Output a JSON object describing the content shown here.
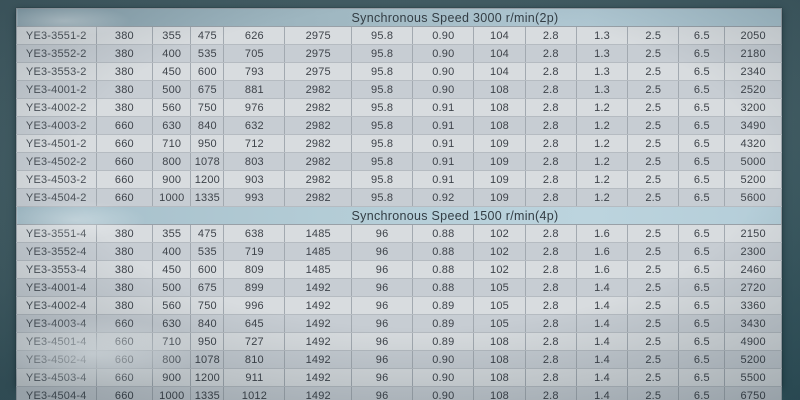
{
  "colors": {
    "background": "#3f5a61",
    "header_band_1": "#9fb7c1",
    "header_band_2": "#b3ccd6",
    "row_light": "#d8dcdf",
    "row_dark": "#c7cdd3",
    "cell_border": "#a2a9b0",
    "text": "#3e434a"
  },
  "table": {
    "sections": [
      {
        "header": "Synchronous Speed 3000 r/min(2p)",
        "rows": [
          [
            "YE3-3551-2",
            "380",
            "355",
            "475",
            "626",
            "2975",
            "95.8",
            "0.90",
            "104",
            "2.8",
            "1.3",
            "2.5",
            "6.5",
            "2050"
          ],
          [
            "YE3-3552-2",
            "380",
            "400",
            "535",
            "705",
            "2975",
            "95.8",
            "0.90",
            "104",
            "2.8",
            "1.3",
            "2.5",
            "6.5",
            "2180"
          ],
          [
            "YE3-3553-2",
            "380",
            "450",
            "600",
            "793",
            "2975",
            "95.8",
            "0.90",
            "104",
            "2.8",
            "1.3",
            "2.5",
            "6.5",
            "2340"
          ],
          [
            "YE3-4001-2",
            "380",
            "500",
            "675",
            "881",
            "2982",
            "95.8",
            "0.90",
            "108",
            "2.8",
            "1.3",
            "2.5",
            "6.5",
            "2520"
          ],
          [
            "YE3-4002-2",
            "380",
            "560",
            "750",
            "976",
            "2982",
            "95.8",
            "0.91",
            "108",
            "2.8",
            "1.2",
            "2.5",
            "6.5",
            "3200"
          ],
          [
            "YE3-4003-2",
            "660",
            "630",
            "840",
            "632",
            "2982",
            "95.8",
            "0.91",
            "108",
            "2.8",
            "1.2",
            "2.5",
            "6.5",
            "3490"
          ],
          [
            "YE3-4501-2",
            "660",
            "710",
            "950",
            "712",
            "2982",
            "95.8",
            "0.91",
            "109",
            "2.8",
            "1.2",
            "2.5",
            "6.5",
            "4320"
          ],
          [
            "YE3-4502-2",
            "660",
            "800",
            "1078",
            "803",
            "2982",
            "95.8",
            "0.91",
            "109",
            "2.8",
            "1.2",
            "2.5",
            "6.5",
            "5000"
          ],
          [
            "YE3-4503-2",
            "660",
            "900",
            "1200",
            "903",
            "2982",
            "95.8",
            "0.91",
            "109",
            "2.8",
            "1.2",
            "2.5",
            "6.5",
            "5200"
          ],
          [
            "YE3-4504-2",
            "660",
            "1000",
            "1335",
            "993",
            "2982",
            "95.8",
            "0.92",
            "109",
            "2.8",
            "1.2",
            "2.5",
            "6.5",
            "5600"
          ]
        ]
      },
      {
        "header": "Synchronous Speed 1500 r/min(4p)",
        "rows": [
          [
            "YE3-3551-4",
            "380",
            "355",
            "475",
            "638",
            "1485",
            "96",
            "0.88",
            "102",
            "2.8",
            "1.6",
            "2.5",
            "6.5",
            "2150"
          ],
          [
            "YE3-3552-4",
            "380",
            "400",
            "535",
            "719",
            "1485",
            "96",
            "0.88",
            "102",
            "2.8",
            "1.6",
            "2.5",
            "6.5",
            "2300"
          ],
          [
            "YE3-3553-4",
            "380",
            "450",
            "600",
            "809",
            "1485",
            "96",
            "0.88",
            "102",
            "2.8",
            "1.6",
            "2.5",
            "6.5",
            "2460"
          ],
          [
            "YE3-4001-4",
            "380",
            "500",
            "675",
            "899",
            "1492",
            "96",
            "0.88",
            "105",
            "2.8",
            "1.4",
            "2.5",
            "6.5",
            "2720"
          ],
          [
            "YE3-4002-4",
            "380",
            "560",
            "750",
            "996",
            "1492",
            "96",
            "0.89",
            "105",
            "2.8",
            "1.4",
            "2.5",
            "6.5",
            "3360"
          ],
          [
            "YE3-4003-4",
            "660",
            "630",
            "840",
            "645",
            "1492",
            "96",
            "0.89",
            "105",
            "2.8",
            "1.4",
            "2.5",
            "6.5",
            "3430"
          ],
          [
            "YE3-4501-4",
            "660",
            "710",
            "950",
            "727",
            "1492",
            "96",
            "0.89",
            "108",
            "2.8",
            "1.4",
            "2.5",
            "6.5",
            "4900"
          ],
          [
            "YE3-4502-4",
            "660",
            "800",
            "1078",
            "810",
            "1492",
            "96",
            "0.90",
            "108",
            "2.8",
            "1.4",
            "2.5",
            "6.5",
            "5200"
          ],
          [
            "YE3-4503-4",
            "660",
            "900",
            "1200",
            "911",
            "1492",
            "96",
            "0.90",
            "108",
            "2.8",
            "1.4",
            "2.5",
            "6.5",
            "5500"
          ],
          [
            "YE3-4504-4",
            "660",
            "1000",
            "1335",
            "1012",
            "1492",
            "96",
            "0.90",
            "108",
            "2.8",
            "1.4",
            "2.5",
            "6.5",
            "6750"
          ]
        ]
      }
    ]
  }
}
